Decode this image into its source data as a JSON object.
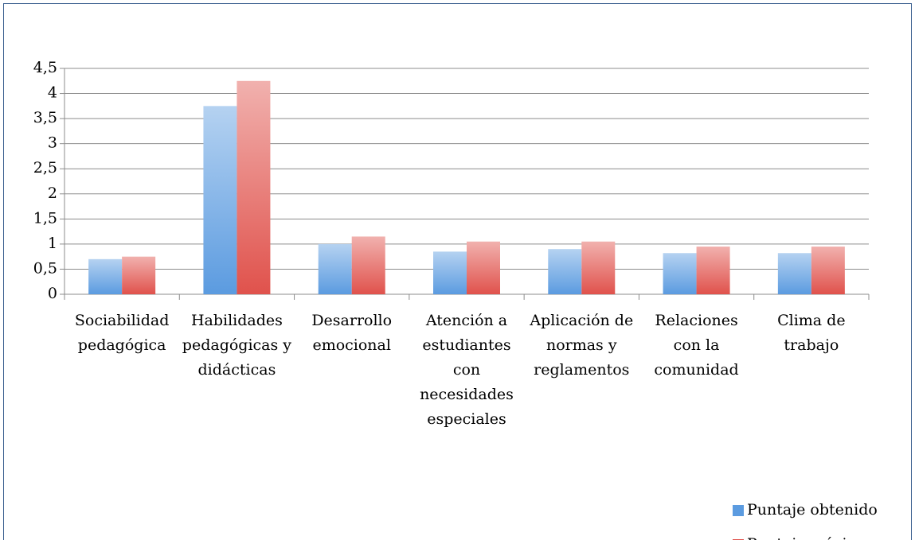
{
  "chart_data": {
    "type": "bar",
    "categories": [
      "Sociabilidad pedagógica",
      "Habilidades pedagógicas y didácticas",
      "Desarrollo emocional",
      "Atención a estudiantes con necesidades especiales",
      "Aplicación de normas y reglamentos",
      "Relaciones con la comunidad",
      "Clima de trabajo"
    ],
    "series": [
      {
        "name": "Puntaje obtenido",
        "color": "#5b9be0",
        "values": [
          0.7,
          3.75,
          1.0,
          0.85,
          0.9,
          0.82,
          0.82
        ]
      },
      {
        "name": "Puntaje máximo",
        "color": "#e0524c",
        "values": [
          0.75,
          4.25,
          1.15,
          1.05,
          1.05,
          0.95,
          0.95
        ]
      }
    ],
    "ylim": [
      0,
      4.5
    ],
    "yticks": [
      0,
      {
        "value": 0.5,
        "label": "0,5"
      },
      1,
      {
        "value": 1.5,
        "label": "1,5"
      },
      2,
      {
        "value": 2.5,
        "label": "2,5"
      },
      3,
      {
        "value": 3.5,
        "label": "3,5"
      },
      4,
      {
        "value": 4.5,
        "label": "4,5"
      }
    ],
    "grid": true,
    "legend": "bottom-right"
  }
}
